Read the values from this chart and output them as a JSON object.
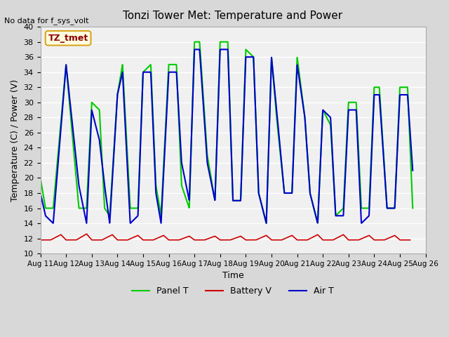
{
  "title": "Tonzi Tower Met: Temperature and Power",
  "ylabel": "Temperature (C) / Power (V)",
  "xlabel": "Time",
  "no_data_text": "No data for f_sys_volt",
  "station_label": "TZ_tmet",
  "ylim": [
    10,
    40
  ],
  "yticks": [
    10,
    12,
    14,
    16,
    18,
    20,
    22,
    24,
    26,
    28,
    30,
    32,
    34,
    36,
    38,
    40
  ],
  "bg_color": "#e8e8e8",
  "plot_bg_color": "#f0f0f0",
  "legend": [
    "Panel T",
    "Battery V",
    "Air T"
  ],
  "legend_colors": [
    "#00cc00",
    "#cc0000",
    "#0000cc"
  ],
  "x_days": [
    11,
    12,
    13,
    14,
    15,
    16,
    17,
    18,
    19,
    20,
    21,
    22,
    23,
    24,
    25,
    26
  ],
  "x_labels": [
    "Aug 11",
    "Aug 12",
    "Aug 13",
    "Aug 14",
    "Aug 15",
    "Aug 16",
    "Aug 17",
    "Aug 18",
    "Aug 19",
    "Aug 20",
    "Aug 21",
    "Aug 22",
    "Aug 23",
    "Aug 24",
    "Aug 25",
    "Aug 26"
  ],
  "panel_t_x": [
    0.0,
    0.2,
    0.5,
    1.0,
    1.5,
    1.8,
    2.0,
    2.3,
    2.5,
    2.7,
    3.0,
    3.2,
    3.5,
    3.8,
    4.0,
    4.3,
    4.5,
    4.7,
    5.0,
    5.3,
    5.5,
    5.8,
    6.0,
    6.2,
    6.5,
    6.8,
    7.0,
    7.3,
    7.5,
    7.8,
    8.0,
    8.3,
    8.5,
    8.8,
    9.0,
    9.2,
    9.5,
    9.8,
    10.0,
    10.3,
    10.5,
    10.8,
    11.0,
    11.3,
    11.5,
    11.8,
    12.0,
    12.3,
    12.5,
    12.8,
    13.0,
    13.2,
    13.5,
    13.8,
    14.0,
    14.3,
    14.5
  ],
  "panel_t_y": [
    20,
    16,
    16,
    35,
    16,
    16,
    30,
    29,
    16,
    15,
    31,
    35,
    16,
    16,
    34,
    35,
    19,
    15,
    35,
    35,
    19,
    16,
    38,
    38,
    23,
    17,
    38,
    38,
    17,
    17,
    37,
    36,
    18,
    14,
    36,
    28,
    18,
    18,
    36,
    28,
    18,
    14,
    29,
    27,
    15,
    16,
    30,
    30,
    16,
    16,
    32,
    32,
    16,
    16,
    32,
    32,
    16
  ],
  "air_t_x": [
    0.0,
    0.2,
    0.5,
    1.0,
    1.5,
    1.8,
    2.0,
    2.3,
    2.5,
    2.7,
    3.0,
    3.2,
    3.5,
    3.8,
    4.0,
    4.3,
    4.5,
    4.7,
    5.0,
    5.3,
    5.5,
    5.8,
    6.0,
    6.2,
    6.5,
    6.8,
    7.0,
    7.3,
    7.5,
    7.8,
    8.0,
    8.3,
    8.5,
    8.8,
    9.0,
    9.2,
    9.5,
    9.8,
    10.0,
    10.3,
    10.5,
    10.8,
    11.0,
    11.3,
    11.5,
    11.8,
    12.0,
    12.3,
    12.5,
    12.8,
    13.0,
    13.2,
    13.5,
    13.8,
    14.0,
    14.3,
    14.5
  ],
  "air_t_y": [
    18,
    15,
    14,
    35,
    19,
    14,
    29,
    25,
    19,
    14,
    31,
    34,
    14,
    15,
    34,
    34,
    18,
    14,
    34,
    34,
    22,
    17,
    37,
    37,
    22,
    17,
    37,
    37,
    17,
    17,
    36,
    36,
    18,
    14,
    36,
    29,
    18,
    18,
    35,
    28,
    18,
    14,
    29,
    28,
    15,
    15,
    29,
    29,
    14,
    15,
    31,
    31,
    16,
    16,
    31,
    31,
    21
  ],
  "battery_v_x": [
    0.0,
    0.4,
    0.8,
    1.0,
    1.4,
    1.8,
    2.0,
    2.4,
    2.8,
    3.0,
    3.4,
    3.8,
    4.0,
    4.4,
    4.8,
    5.0,
    5.4,
    5.8,
    6.0,
    6.4,
    6.8,
    7.0,
    7.4,
    7.8,
    8.0,
    8.4,
    8.8,
    9.0,
    9.4,
    9.8,
    10.0,
    10.4,
    10.8,
    11.0,
    11.4,
    11.8,
    12.0,
    12.4,
    12.8,
    13.0,
    13.4,
    13.8,
    14.0,
    14.4
  ],
  "battery_v_y": [
    11.8,
    11.8,
    12.5,
    11.8,
    11.8,
    12.6,
    11.8,
    11.8,
    12.5,
    11.8,
    11.8,
    12.4,
    11.8,
    11.8,
    12.4,
    11.8,
    11.8,
    12.3,
    11.8,
    11.8,
    12.3,
    11.8,
    11.8,
    12.3,
    11.8,
    11.8,
    12.4,
    11.8,
    11.8,
    12.4,
    11.8,
    11.8,
    12.5,
    11.8,
    11.8,
    12.5,
    11.8,
    11.8,
    12.4,
    11.8,
    11.8,
    12.4,
    11.8,
    11.8
  ]
}
